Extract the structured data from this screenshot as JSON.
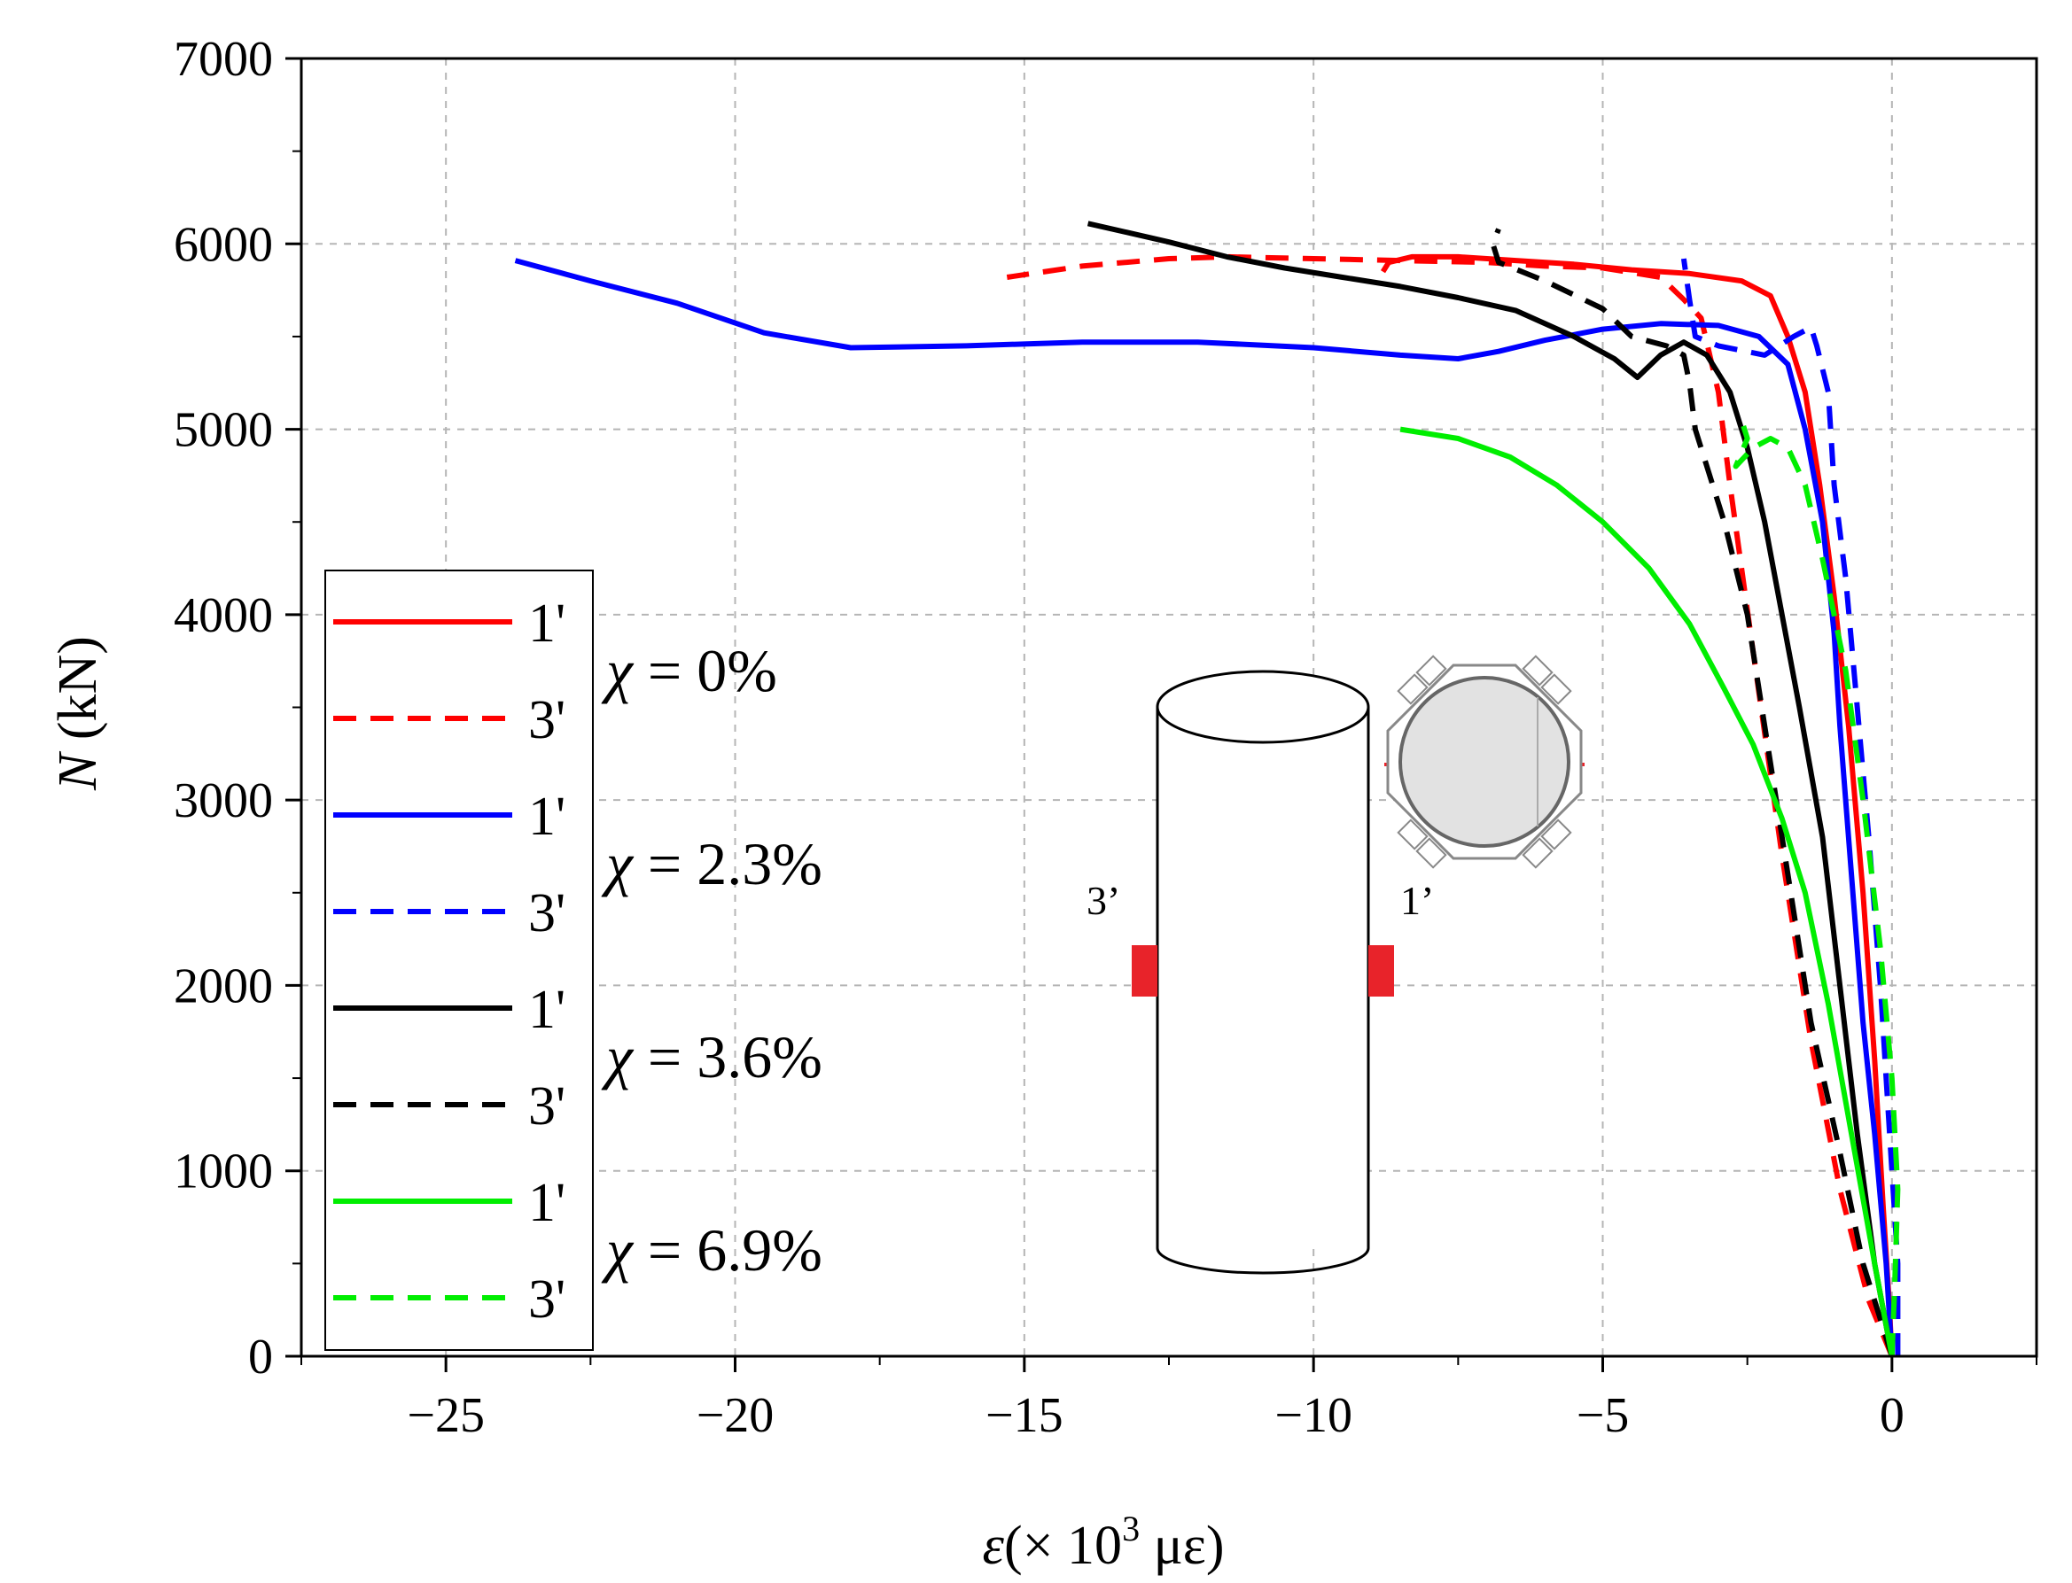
{
  "chart_data": {
    "type": "line",
    "title": "",
    "xlabel": "ε (× 10³ με)",
    "xlabel_parts": {
      "symbol": "ε",
      "prefix": "(× 10",
      "sup": "3",
      "suffix": " με)"
    },
    "ylabel": "N (kN)",
    "ylabel_parts": {
      "symbol": "N",
      "suffix": " (kN)"
    },
    "xlim": [
      -27.5,
      2.5
    ],
    "ylim": [
      0,
      7000
    ],
    "xticks": [
      -25,
      -20,
      -15,
      -10,
      -5,
      0
    ],
    "xtick_labels": [
      "−25",
      "−20",
      "−15",
      "−10",
      "−5",
      "0"
    ],
    "yticks": [
      0,
      1000,
      2000,
      3000,
      4000,
      5000,
      6000,
      7000
    ],
    "ytick_labels": [
      "0",
      "1000",
      "2000",
      "3000",
      "4000",
      "5000",
      "6000",
      "7000"
    ],
    "grid": true,
    "legend_position": "left",
    "legend": [
      {
        "label": "1'",
        "color": "#ff0000",
        "dash": "solid"
      },
      {
        "label": "3'",
        "color": "#ff0000",
        "dash": "dashed"
      },
      {
        "label": "1'",
        "color": "#0000ff",
        "dash": "solid"
      },
      {
        "label": "3'",
        "color": "#0000ff",
        "dash": "dashed"
      },
      {
        "label": "1'",
        "color": "#000000",
        "dash": "solid"
      },
      {
        "label": "3'",
        "color": "#000000",
        "dash": "dashed"
      },
      {
        "label": "1'",
        "color": "#00ee00",
        "dash": "solid"
      },
      {
        "label": "3'",
        "color": "#00ee00",
        "dash": "dashed"
      }
    ],
    "groups": [
      {
        "symbol": "χ",
        "text": " = 0%"
      },
      {
        "symbol": "χ",
        "text": " = 2.3%"
      },
      {
        "symbol": "χ",
        "text": " = 3.6%"
      },
      {
        "symbol": "χ",
        "text": " = 6.9%"
      }
    ],
    "inset": {
      "label_left": "3’",
      "label_right": "1’"
    },
    "series": [
      {
        "name": "χ = 0% 1'",
        "color": "#ff0000",
        "dash": "solid",
        "points": [
          [
            0,
            0
          ],
          [
            -0.05,
            300
          ],
          [
            -0.15,
            800
          ],
          [
            -0.3,
            1600
          ],
          [
            -0.5,
            2500
          ],
          [
            -0.75,
            3400
          ],
          [
            -1.0,
            4100
          ],
          [
            -1.25,
            4700
          ],
          [
            -1.5,
            5200
          ],
          [
            -1.8,
            5500
          ],
          [
            -2.1,
            5720
          ],
          [
            -2.6,
            5800
          ],
          [
            -3.5,
            5840
          ],
          [
            -4.5,
            5860
          ],
          [
            -5.5,
            5890
          ],
          [
            -6.5,
            5910
          ],
          [
            -7.5,
            5930
          ],
          [
            -8.3,
            5930
          ],
          [
            -8.7,
            5900
          ],
          [
            -8.8,
            5850
          ]
        ]
      },
      {
        "name": "χ = 0% 3'",
        "color": "#ff0000",
        "dash": "dashed",
        "points": [
          [
            0,
            0
          ],
          [
            -0.4,
            300
          ],
          [
            -0.9,
            900
          ],
          [
            -1.4,
            1700
          ],
          [
            -1.9,
            2700
          ],
          [
            -2.4,
            3800
          ],
          [
            -2.8,
            4700
          ],
          [
            -3.0,
            5200
          ],
          [
            -3.3,
            5600
          ],
          [
            -3.6,
            5700
          ],
          [
            -4.0,
            5820
          ],
          [
            -5.0,
            5870
          ],
          [
            -6.0,
            5880
          ],
          [
            -7.0,
            5900
          ],
          [
            -8.5,
            5910
          ],
          [
            -10.0,
            5920
          ],
          [
            -11.5,
            5930
          ],
          [
            -12.5,
            5920
          ],
          [
            -14.0,
            5880
          ],
          [
            -15.3,
            5820
          ]
        ]
      },
      {
        "name": "χ = 2.3% 1'",
        "color": "#0000ff",
        "dash": "solid",
        "points": [
          [
            0,
            0
          ],
          [
            -0.1,
            500
          ],
          [
            -0.3,
            1200
          ],
          [
            -0.5,
            1800
          ],
          [
            -0.7,
            2600
          ],
          [
            -0.9,
            3400
          ],
          [
            -1.0,
            3900
          ],
          [
            -1.2,
            4500
          ],
          [
            -1.5,
            5000
          ],
          [
            -1.8,
            5350
          ],
          [
            -2.3,
            5500
          ],
          [
            -3.0,
            5560
          ],
          [
            -4.0,
            5570
          ],
          [
            -5.0,
            5540
          ],
          [
            -6.0,
            5480
          ],
          [
            -6.8,
            5420
          ],
          [
            -7.5,
            5380
          ],
          [
            -8.5,
            5400
          ],
          [
            -10.0,
            5440
          ],
          [
            -12.0,
            5470
          ],
          [
            -14.0,
            5470
          ],
          [
            -16.0,
            5450
          ],
          [
            -18.0,
            5440
          ],
          [
            -19.5,
            5520
          ],
          [
            -21.0,
            5680
          ],
          [
            -22.5,
            5800
          ],
          [
            -23.8,
            5910
          ]
        ]
      },
      {
        "name": "χ = 2.3% 3'",
        "color": "#0000ff",
        "dash": "dashed",
        "points": [
          [
            0.1,
            0
          ],
          [
            0.1,
            500
          ],
          [
            0.0,
            1000
          ],
          [
            -0.2,
            2000
          ],
          [
            -0.4,
            2800
          ],
          [
            -0.6,
            3500
          ],
          [
            -0.8,
            4200
          ],
          [
            -1.0,
            4700
          ],
          [
            -1.1,
            5200
          ],
          [
            -1.3,
            5450
          ],
          [
            -1.4,
            5550
          ],
          [
            -1.7,
            5500
          ],
          [
            -2.2,
            5400
          ],
          [
            -3.0,
            5450
          ],
          [
            -3.4,
            5500
          ],
          [
            -3.5,
            5700
          ],
          [
            -3.6,
            5920
          ]
        ]
      },
      {
        "name": "χ = 3.6% 1'",
        "color": "#000000",
        "dash": "solid",
        "points": [
          [
            0,
            0
          ],
          [
            -0.3,
            500
          ],
          [
            -0.6,
            1200
          ],
          [
            -0.9,
            2000
          ],
          [
            -1.2,
            2800
          ],
          [
            -1.6,
            3500
          ],
          [
            -1.9,
            4000
          ],
          [
            -2.2,
            4500
          ],
          [
            -2.5,
            4900
          ],
          [
            -2.8,
            5200
          ],
          [
            -3.2,
            5400
          ],
          [
            -3.6,
            5470
          ],
          [
            -4.0,
            5400
          ],
          [
            -4.4,
            5280
          ],
          [
            -4.8,
            5380
          ],
          [
            -5.5,
            5500
          ],
          [
            -6.5,
            5640
          ],
          [
            -7.5,
            5710
          ],
          [
            -8.5,
            5770
          ],
          [
            -9.5,
            5820
          ],
          [
            -10.5,
            5870
          ],
          [
            -11.5,
            5930
          ],
          [
            -12.5,
            6010
          ],
          [
            -13.2,
            6060
          ],
          [
            -13.9,
            6110
          ]
        ]
      },
      {
        "name": "χ = 3.6% 3'",
        "color": "#000000",
        "dash": "dashed",
        "points": [
          [
            0,
            0
          ],
          [
            -0.5,
            500
          ],
          [
            -0.9,
            1100
          ],
          [
            -1.4,
            1800
          ],
          [
            -1.8,
            2600
          ],
          [
            -2.2,
            3400
          ],
          [
            -2.5,
            4000
          ],
          [
            -2.9,
            4500
          ],
          [
            -3.4,
            5000
          ],
          [
            -3.5,
            5250
          ],
          [
            -3.6,
            5400
          ],
          [
            -3.9,
            5450
          ],
          [
            -4.5,
            5500
          ],
          [
            -5.0,
            5650
          ],
          [
            -6.0,
            5800
          ],
          [
            -6.8,
            5900
          ],
          [
            -6.9,
            6000
          ],
          [
            -6.8,
            6080
          ]
        ]
      },
      {
        "name": "χ = 6.9% 1'",
        "color": "#00ee00",
        "dash": "solid",
        "points": [
          [
            0,
            0
          ],
          [
            -0.3,
            500
          ],
          [
            -0.7,
            1200
          ],
          [
            -1.1,
            1900
          ],
          [
            -1.5,
            2500
          ],
          [
            -1.9,
            2900
          ],
          [
            -2.4,
            3300
          ],
          [
            -2.9,
            3600
          ],
          [
            -3.5,
            3950
          ],
          [
            -4.2,
            4250
          ],
          [
            -5.0,
            4500
          ],
          [
            -5.8,
            4700
          ],
          [
            -6.6,
            4850
          ],
          [
            -7.5,
            4950
          ],
          [
            -8.5,
            5000
          ]
        ]
      },
      {
        "name": "χ = 6.9% 3'",
        "color": "#00ee00",
        "dash": "dashed",
        "points": [
          [
            0,
            0
          ],
          [
            0.05,
            400
          ],
          [
            0.1,
            900
          ],
          [
            0.0,
            1500
          ],
          [
            -0.2,
            2200
          ],
          [
            -0.5,
            3000
          ],
          [
            -0.8,
            3700
          ],
          [
            -1.2,
            4300
          ],
          [
            -1.5,
            4700
          ],
          [
            -1.8,
            4900
          ],
          [
            -2.1,
            4950
          ],
          [
            -2.4,
            4900
          ],
          [
            -2.7,
            4800
          ],
          [
            -2.5,
            4950
          ],
          [
            -2.6,
            5050
          ]
        ]
      }
    ]
  }
}
